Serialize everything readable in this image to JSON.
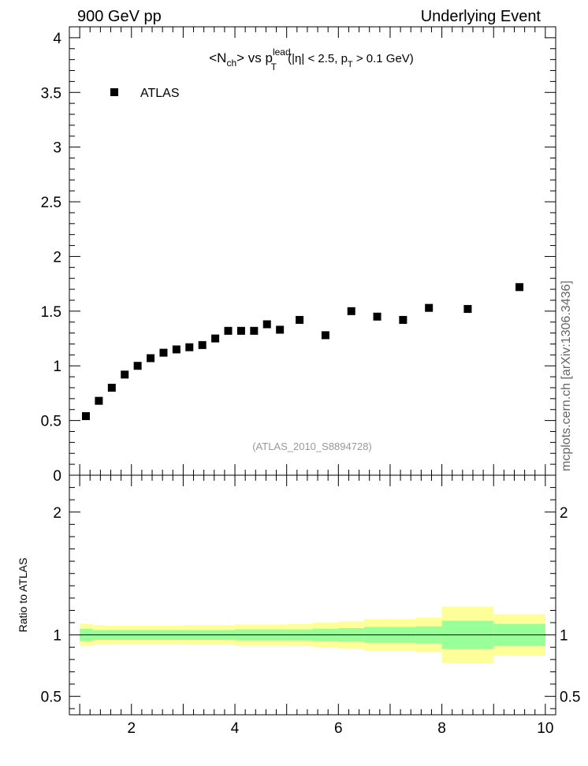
{
  "header": {
    "left": "900 GeV pp",
    "right": "Underlying Event"
  },
  "side_label": "mcplots.cern.ch [arXiv:1306.3436]",
  "chart_data": [
    {
      "type": "scatter",
      "title": {
        "open": "<N",
        "n_sub": "ch",
        "mid": "> vs p",
        "lead_sup": "lead",
        "t_sub": "T",
        "rest1": " (|η| < 2.5, p",
        "t_sub2": "T",
        "rest2": " > 0.1 GeV)"
      },
      "watermark": "(ATLAS_2010_S8894728)",
      "legend": {
        "position": "top-left",
        "entries": [
          "ATLAS"
        ]
      },
      "xlim": [
        0.8,
        10.2
      ],
      "ylim": [
        0,
        4.1
      ],
      "yticks": [
        {
          "v": 0,
          "label": "0"
        },
        {
          "v": 0.5,
          "label": "0.5"
        },
        {
          "v": 1,
          "label": "1"
        },
        {
          "v": 1.5,
          "label": "1.5"
        },
        {
          "v": 2,
          "label": "2"
        },
        {
          "v": 2.5,
          "label": "2.5"
        },
        {
          "v": 3,
          "label": "3"
        },
        {
          "v": 3.5,
          "label": "3.5"
        },
        {
          "v": 4,
          "label": "4"
        }
      ],
      "series": [
        {
          "name": "ATLAS",
          "color": "#000000",
          "x": [
            1.12,
            1.37,
            1.62,
            1.87,
            2.12,
            2.37,
            2.62,
            2.87,
            3.12,
            3.37,
            3.62,
            3.87,
            4.12,
            4.37,
            4.62,
            4.87,
            5.25,
            5.75,
            6.25,
            6.75,
            7.25,
            7.75,
            8.5,
            9.5
          ],
          "y": [
            0.54,
            0.68,
            0.8,
            0.92,
            1.0,
            1.07,
            1.12,
            1.15,
            1.17,
            1.19,
            1.25,
            1.32,
            1.32,
            1.32,
            1.38,
            1.33,
            1.42,
            1.28,
            1.5,
            1.45,
            1.42,
            1.53,
            1.52,
            1.72
          ]
        }
      ]
    },
    {
      "type": "area",
      "ylabel": "Ratio to ATLAS",
      "xlim": [
        0.8,
        10.2
      ],
      "ylim": [
        0.35,
        2.3
      ],
      "xticks": [
        {
          "v": 2,
          "label": "2"
        },
        {
          "v": 4,
          "label": "4"
        },
        {
          "v": 6,
          "label": "6"
        },
        {
          "v": 8,
          "label": "8"
        },
        {
          "v": 10,
          "label": "10"
        }
      ],
      "yticks": [
        {
          "v": 0.5,
          "label": "0.5"
        },
        {
          "v": 1,
          "label": "1"
        },
        {
          "v": 2,
          "label": "2"
        }
      ],
      "reference_line": 1,
      "band_colors": {
        "outer": "#ffff99",
        "inner": "#99ff99"
      },
      "bins": [
        {
          "lo": 1.0,
          "hi": 1.25,
          "outer": [
            0.91,
            1.09
          ],
          "inner": [
            0.95,
            1.05
          ]
        },
        {
          "lo": 1.25,
          "hi": 1.5,
          "outer": [
            0.92,
            1.08
          ],
          "inner": [
            0.96,
            1.04
          ]
        },
        {
          "lo": 1.5,
          "hi": 3.0,
          "outer": [
            0.925,
            1.075
          ],
          "inner": [
            0.96,
            1.04
          ]
        },
        {
          "lo": 3.0,
          "hi": 4.0,
          "outer": [
            0.92,
            1.08
          ],
          "inner": [
            0.96,
            1.04
          ]
        },
        {
          "lo": 4.0,
          "hi": 5.0,
          "outer": [
            0.915,
            1.085
          ],
          "inner": [
            0.955,
            1.045
          ]
        },
        {
          "lo": 5.0,
          "hi": 5.5,
          "outer": [
            0.91,
            1.09
          ],
          "inner": [
            0.955,
            1.045
          ]
        },
        {
          "lo": 5.5,
          "hi": 6.0,
          "outer": [
            0.9,
            1.1
          ],
          "inner": [
            0.95,
            1.05
          ]
        },
        {
          "lo": 6.0,
          "hi": 6.5,
          "outer": [
            0.89,
            1.11
          ],
          "inner": [
            0.945,
            1.055
          ]
        },
        {
          "lo": 6.5,
          "hi": 7.0,
          "outer": [
            0.87,
            1.13
          ],
          "inner": [
            0.935,
            1.065
          ]
        },
        {
          "lo": 7.0,
          "hi": 7.5,
          "outer": [
            0.87,
            1.13
          ],
          "inner": [
            0.935,
            1.065
          ]
        },
        {
          "lo": 7.5,
          "hi": 8.0,
          "outer": [
            0.86,
            1.14
          ],
          "inner": [
            0.93,
            1.07
          ]
        },
        {
          "lo": 8.0,
          "hi": 9.0,
          "outer": [
            0.77,
            1.23
          ],
          "inner": [
            0.885,
            1.115
          ]
        },
        {
          "lo": 9.0,
          "hi": 10.0,
          "outer": [
            0.83,
            1.17
          ],
          "inner": [
            0.91,
            1.09
          ]
        }
      ]
    }
  ]
}
